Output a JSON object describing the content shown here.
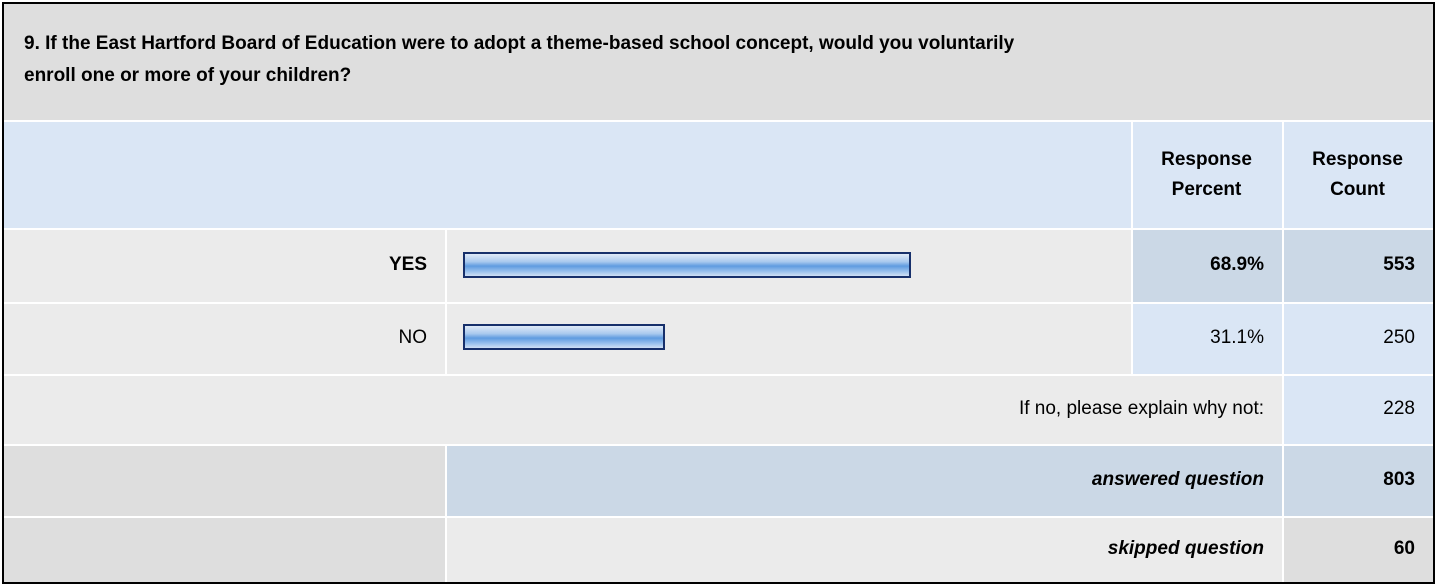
{
  "question": {
    "text_line1": "9. If the East Hartford Board of Education were to adopt a theme-based school concept, would you voluntarily",
    "text_line2": "enroll one or more of your children?"
  },
  "headers": {
    "percent_line1": "Response",
    "percent_line2": "Percent",
    "count_line1": "Response",
    "count_line2": "Count"
  },
  "rows": [
    {
      "label": "YES",
      "percent": "68.9%",
      "percent_value": 0.689,
      "count": "553"
    },
    {
      "label": "NO",
      "percent": "31.1%",
      "percent_value": 0.311,
      "count": "250"
    }
  ],
  "explain": {
    "label": "If no, please explain why not:",
    "count": "228"
  },
  "answered": {
    "label": "answered question",
    "count": "803"
  },
  "skipped": {
    "label": "skipped question",
    "count": "60"
  },
  "colors": {
    "header_blue": "#dae6f5",
    "highlight_blue": "#cbd8e6",
    "row_gray": "#ebebeb",
    "bar_border": "#17306b",
    "bar_fill": "#5f9be0"
  }
}
